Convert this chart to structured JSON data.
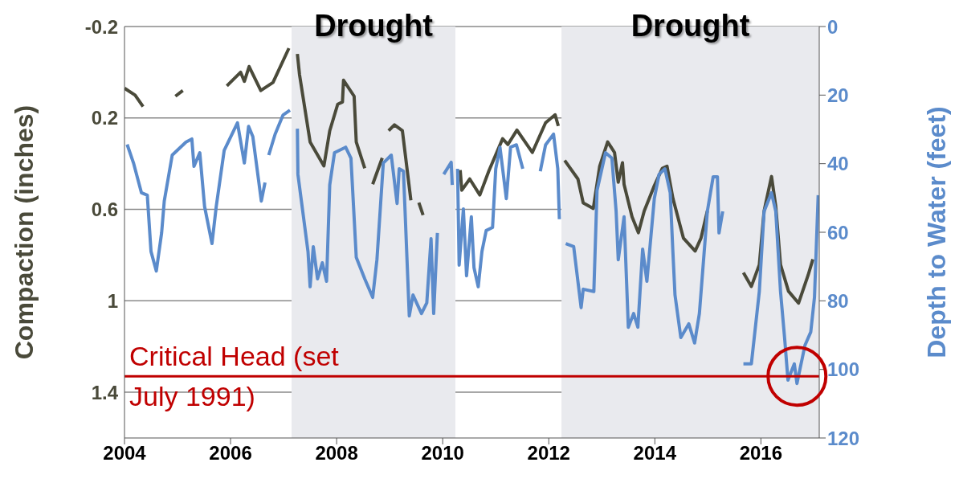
{
  "chart_data": {
    "type": "line",
    "xlabel": null,
    "ylabel": "Compaction (inches)",
    "y2label": "Depth to Water (feet)",
    "xlim": [
      2004,
      2017.1
    ],
    "xticks": [
      2004,
      2006,
      2008,
      2010,
      2012,
      2014,
      2016
    ],
    "ylim": [
      1.6,
      -0.2
    ],
    "yticks": [
      -0.2,
      0.2,
      0.6,
      1,
      1.4
    ],
    "y2lim": [
      120,
      0
    ],
    "y2ticks": [
      0,
      20,
      40,
      60,
      80,
      100,
      120
    ],
    "grid": "y",
    "marker": "none",
    "line_style": "solid",
    "series": [
      {
        "color": "#4a4a3a",
        "x": [
          2004.0,
          2004.2,
          2004.35,
          2004.6,
          2004.96,
          2005.1,
          2005.5,
          2005.93,
          2006.19,
          2006.26,
          2006.35,
          2006.57,
          2006.8,
          2007.1,
          2007.18,
          2007.26,
          2007.3,
          2007.5,
          2007.76,
          2007.87,
          2008.02,
          2008.11,
          2008.13,
          2008.33,
          2008.37,
          2008.53,
          2008.6,
          2008.68,
          2008.86,
          2008.92,
          2008.98,
          2009.09,
          2009.24,
          2009.4,
          2009.48,
          2009.55,
          2009.63,
          2010.0,
          2010.33,
          2010.36,
          2010.51,
          2010.7,
          2010.87,
          2011.13,
          2011.23,
          2011.4,
          2011.69,
          2011.94,
          2012.12,
          2012.18,
          2012.24,
          2012.3,
          2012.55,
          2012.65,
          2012.84,
          2012.96,
          2013.11,
          2013.24,
          2013.31,
          2013.39,
          2013.42,
          2013.57,
          2013.69,
          2013.8,
          2013.98,
          2014.14,
          2014.23,
          2014.34,
          2014.54,
          2014.76,
          2014.87,
          2014.99,
          2015.3,
          2015.67,
          2015.82,
          2015.97,
          2016.06,
          2016.2,
          2016.28,
          2016.37,
          2016.52,
          2016.71,
          2016.89,
          2016.98
        ],
        "values": [
          0.07,
          0.1,
          0.15,
          null,
          0.105,
          0.08,
          null,
          0.06,
          0.0,
          0.04,
          -0.025,
          0.08,
          0.045,
          -0.105,
          null,
          -0.08,
          0.01,
          0.305,
          0.41,
          0.256,
          0.14,
          0.13,
          0.035,
          0.105,
          0.305,
          0.42,
          null,
          0.49,
          0.375,
          null,
          0.256,
          0.23,
          0.256,
          0.56,
          null,
          0.57,
          0.625,
          null,
          0.428,
          0.516,
          0.467,
          0.537,
          0.432,
          0.291,
          0.316,
          0.253,
          0.351,
          0.221,
          0.186,
          0.235,
          null,
          0.386,
          0.467,
          0.572,
          0.596,
          0.411,
          0.305,
          0.351,
          0.481,
          0.396,
          0.491,
          0.632,
          0.702,
          0.607,
          0.502,
          0.421,
          0.411,
          0.551,
          0.726,
          0.782,
          0.726,
          0.607,
          null,
          0.877,
          0.937,
          0.842,
          0.607,
          0.456,
          0.586,
          0.842,
          0.958,
          1.01,
          0.888,
          0.818
        ]
      },
      {
        "axis": "y2",
        "color": "#5b8bcb",
        "x": [
          2004.05,
          2004.17,
          2004.32,
          2004.43,
          2004.5,
          2004.6,
          2004.7,
          2004.75,
          2004.9,
          2005.16,
          2005.27,
          2005.31,
          2005.42,
          2005.51,
          2005.65,
          2005.73,
          2005.88,
          2006.13,
          2006.26,
          2006.34,
          2006.42,
          2006.58,
          2006.65,
          2006.68,
          2006.72,
          2006.84,
          2006.99,
          2007.12,
          2007.2,
          2007.26,
          2007.27,
          2007.46,
          2007.5,
          2007.56,
          2007.64,
          2007.73,
          2007.81,
          2007.87,
          2007.96,
          2008.17,
          2008.27,
          2008.37,
          2008.53,
          2008.68,
          2008.76,
          2008.88,
          2009.03,
          2009.14,
          2009.18,
          2009.26,
          2009.37,
          2009.44,
          2009.6,
          2009.7,
          2009.78,
          2009.83,
          2009.9,
          2009.96,
          2010.02,
          2010.16,
          2010.18,
          2010.23,
          2010.28,
          2010.31,
          2010.39,
          2010.45,
          2010.54,
          2010.59,
          2010.67,
          2010.74,
          2010.82,
          2010.94,
          2011.0,
          2011.08,
          2011.2,
          2011.28,
          2011.39,
          2011.51,
          2011.7,
          2011.84,
          2011.94,
          2012.09,
          2012.17,
          2012.2,
          2012.26,
          2012.32,
          2012.47,
          2012.61,
          2012.65,
          2012.85,
          2012.91,
          2013.07,
          2013.19,
          2013.27,
          2013.31,
          2013.42,
          2013.5,
          2013.6,
          2013.68,
          2013.77,
          2013.85,
          2013.99,
          2014.08,
          2014.19,
          2014.29,
          2014.34,
          2014.38,
          2014.49,
          2014.64,
          2014.75,
          2014.84,
          2014.99,
          2015.1,
          2015.18,
          2015.21,
          2015.28,
          2015.5,
          2015.67,
          2015.82,
          2015.97,
          2016.06,
          2016.2,
          2016.28,
          2016.37,
          2016.45,
          2016.51,
          2016.63,
          2016.68,
          2016.83,
          2016.94,
          2017.01,
          2017.08
        ],
        "values": [
          34.4,
          39.8,
          48.5,
          49.2,
          65.6,
          71.3,
          60.2,
          50.9,
          37.5,
          33.7,
          32.8,
          40.8,
          36.8,
          52.5,
          63.3,
          52.5,
          36.1,
          28.1,
          39.8,
          29.1,
          32.1,
          50.9,
          45.5,
          null,
          37.5,
          31.4,
          25.8,
          24.4,
          null,
          29.8,
          43.1,
          65.6,
          75.9,
          64.2,
          73.6,
          68.9,
          74.3,
          46.2,
          36.8,
          35.2,
          38.4,
          67.3,
          73.6,
          79.0,
          68.0,
          39.8,
          37.5,
          51.6,
          41.5,
          42.2,
          84.4,
          78.3,
          83.7,
          80.6,
          61.9,
          83.7,
          60.2,
          null,
          43.1,
          39.6,
          46.2,
          null,
          41.5,
          69.6,
          53.2,
          72.7,
          55.5,
          70.3,
          75.9,
          65.6,
          59.5,
          58.6,
          41.5,
          35.2,
          50.2,
          35.2,
          34.5,
          41.5,
          null,
          42.2,
          34.5,
          31.4,
          41.5,
          56.2,
          null,
          63.3,
          64.2,
          82.0,
          76.6,
          77.3,
          47.8,
          36.8,
          38.4,
          53.9,
          68.0,
          55.5,
          87.7,
          83.7,
          87.7,
          64.9,
          74.3,
          50.2,
          43.1,
          41.5,
          48.5,
          65.6,
          78.3,
          90.7,
          86.7,
          92.3,
          83.7,
          53.9,
          43.8,
          43.8,
          60.2,
          53.9,
          null,
          98.4,
          98.4,
          77.3,
          53.9,
          48.5,
          53.9,
          77.3,
          91.4,
          103.1,
          98.4,
          104.1,
          93.0,
          89.1,
          79.0,
          49.2
        ]
      }
    ],
    "bands": [
      {
        "axis": "x",
        "from": 2007.15,
        "to": 2010.24,
        "label": "Drought",
        "color": "#e9eaee"
      },
      {
        "axis": "x",
        "from": 2012.24,
        "to": 2017.1,
        "label": "Drought",
        "color": "#e9eaee"
      }
    ],
    "ref_lines": [
      {
        "axis": "y2",
        "value": 102,
        "label": "Critical Head (set July 1991)",
        "color": "#c00000"
      }
    ]
  }
}
